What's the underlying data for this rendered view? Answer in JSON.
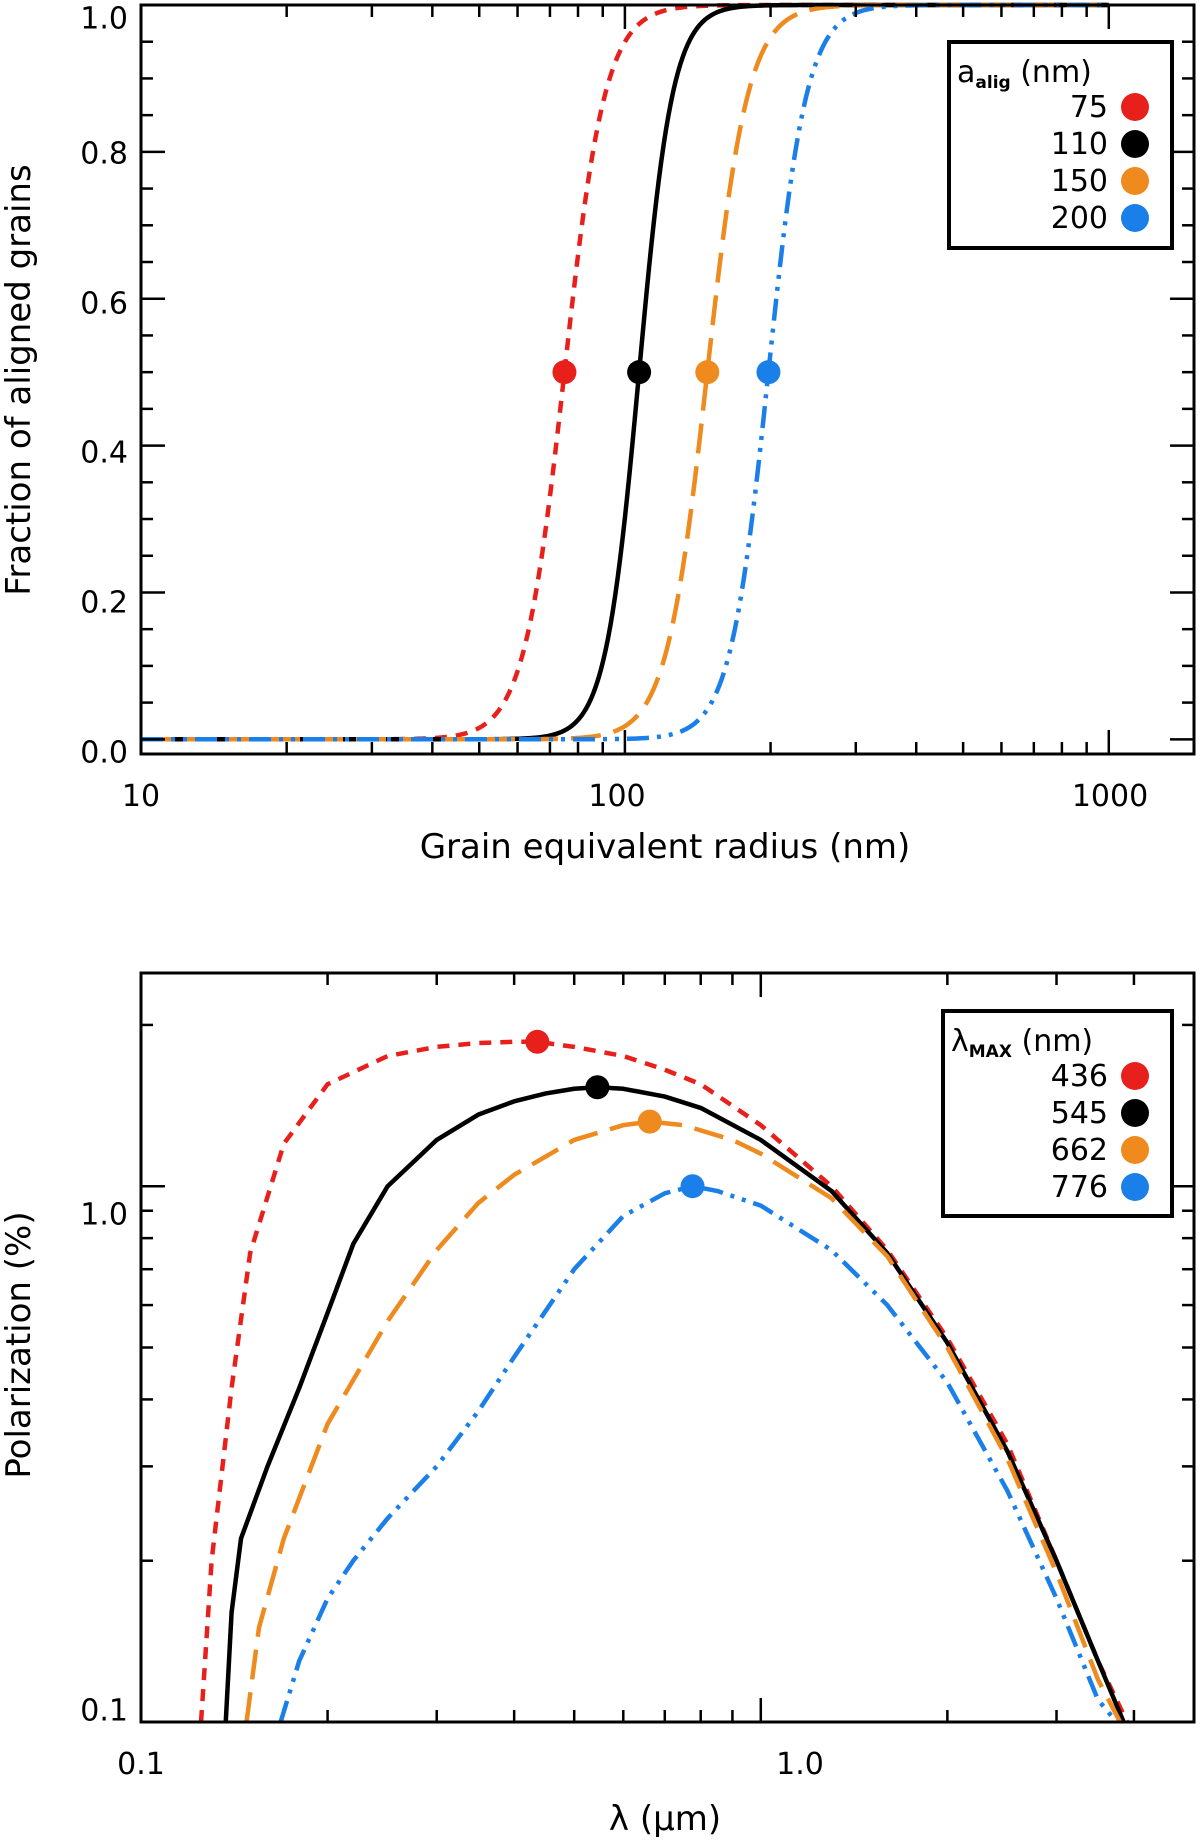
{
  "colors": {
    "red": "#e8201c",
    "black": "#000000",
    "orange": "#ee8a1e",
    "blue": "#1a7fe8"
  },
  "chart_data": [
    {
      "type": "line",
      "xscale": "log",
      "yscale": "linear",
      "xlabel": "Grain equivalent radius (nm)",
      "ylabel": "Fraction of aligned grains",
      "xlim": [
        10,
        1500
      ],
      "ylim": [
        -0.02,
        1.0
      ],
      "xticks": [
        10,
        100,
        1000
      ],
      "xtick_labels": [
        "10",
        "100",
        "1000"
      ],
      "yticks": [
        0.0,
        0.2,
        0.4,
        0.6,
        0.8,
        1.0
      ],
      "ytick_labels": [
        "0.0",
        "0.2",
        "0.4",
        "0.6",
        "0.8",
        "1.0"
      ],
      "legend": {
        "title_main": "a",
        "title_sub": "alig",
        "title_unit": " (nm)",
        "placement": "top-right",
        "entries": [
          "75",
          "110",
          "150",
          "200"
        ]
      },
      "series": [
        {
          "name": "75",
          "color_key": "red",
          "dash": "short",
          "center": 75,
          "width": 0.085,
          "marker": {
            "x": 75,
            "y": 0.5
          }
        },
        {
          "name": "110",
          "color_key": "black",
          "dash": "solid",
          "center": 107,
          "width": 0.07,
          "marker": {
            "x": 107,
            "y": 0.5
          }
        },
        {
          "name": "150",
          "color_key": "orange",
          "dash": "long",
          "center": 148,
          "width": 0.085,
          "marker": {
            "x": 148,
            "y": 0.5
          }
        },
        {
          "name": "200",
          "color_key": "blue",
          "dash": "dashdotdot",
          "center": 198,
          "width": 0.08,
          "marker": {
            "x": 198,
            "y": 0.5
          }
        }
      ]
    },
    {
      "type": "line",
      "xscale": "log",
      "yscale": "log",
      "xlabel": "λ (μm)",
      "ylabel": "Polarization (%)",
      "xlim": [
        0.1,
        5.0
      ],
      "ylim": [
        0.1,
        2.5
      ],
      "xticks": [
        0.1,
        1.0
      ],
      "xtick_labels": [
        "0.1",
        "1.0"
      ],
      "yticks": [
        0.1,
        1.0
      ],
      "ytick_labels": [
        "0.1",
        "1.0"
      ],
      "legend": {
        "title_main": "λ",
        "title_sub": "MAX",
        "title_unit": " (nm)",
        "placement": "top-right",
        "entries": [
          "436",
          "545",
          "662",
          "776"
        ]
      },
      "series": [
        {
          "name": "436",
          "color_key": "red",
          "dash": "short",
          "x": [
            0.125,
            0.13,
            0.14,
            0.15,
            0.17,
            0.2,
            0.25,
            0.3,
            0.35,
            0.4,
            0.436,
            0.5,
            0.6,
            0.7,
            0.8,
            1.0,
            1.3,
            1.6,
            2.0,
            2.5,
            3.0,
            3.5,
            3.9
          ],
          "y": [
            0.1,
            0.2,
            0.42,
            0.75,
            1.2,
            1.55,
            1.75,
            1.82,
            1.85,
            1.86,
            1.86,
            1.82,
            1.75,
            1.65,
            1.55,
            1.3,
            1.0,
            0.76,
            0.52,
            0.33,
            0.2,
            0.13,
            0.1
          ],
          "marker": {
            "x": 0.436,
            "y": 1.86
          }
        },
        {
          "name": "545",
          "color_key": "black",
          "dash": "solid",
          "x": [
            0.137,
            0.14,
            0.145,
            0.16,
            0.18,
            0.2,
            0.22,
            0.25,
            0.3,
            0.35,
            0.4,
            0.45,
            0.5,
            0.545,
            0.6,
            0.7,
            0.8,
            1.0,
            1.3,
            1.6,
            2.0,
            2.5,
            3.0,
            3.5,
            3.85
          ],
          "y": [
            0.1,
            0.16,
            0.22,
            0.3,
            0.42,
            0.58,
            0.78,
            1.0,
            1.22,
            1.36,
            1.44,
            1.49,
            1.52,
            1.53,
            1.52,
            1.47,
            1.4,
            1.22,
            0.98,
            0.75,
            0.51,
            0.32,
            0.2,
            0.13,
            0.1
          ],
          "marker": {
            "x": 0.545,
            "y": 1.53
          }
        },
        {
          "name": "662",
          "color_key": "orange",
          "dash": "long",
          "x": [
            0.148,
            0.155,
            0.17,
            0.2,
            0.25,
            0.3,
            0.35,
            0.4,
            0.5,
            0.6,
            0.662,
            0.75,
            0.9,
            1.0,
            1.3,
            1.6,
            2.0,
            2.5,
            3.0,
            3.5,
            3.8
          ],
          "y": [
            0.1,
            0.15,
            0.22,
            0.36,
            0.56,
            0.76,
            0.93,
            1.05,
            1.22,
            1.3,
            1.32,
            1.3,
            1.22,
            1.15,
            0.95,
            0.74,
            0.5,
            0.31,
            0.19,
            0.12,
            0.1
          ],
          "marker": {
            "x": 0.662,
            "y": 1.32
          }
        },
        {
          "name": "776",
          "color_key": "blue",
          "dash": "dashdotdot",
          "x": [
            0.168,
            0.18,
            0.2,
            0.22,
            0.25,
            0.3,
            0.35,
            0.4,
            0.5,
            0.6,
            0.7,
            0.776,
            0.85,
            1.0,
            1.3,
            1.6,
            2.0,
            2.5,
            3.0,
            3.5,
            3.75
          ],
          "y": [
            0.1,
            0.13,
            0.17,
            0.2,
            0.24,
            0.3,
            0.38,
            0.48,
            0.7,
            0.88,
            0.97,
            1.0,
            0.98,
            0.92,
            0.76,
            0.6,
            0.43,
            0.27,
            0.17,
            0.11,
            0.1
          ],
          "marker": {
            "x": 0.776,
            "y": 1.0
          }
        }
      ]
    }
  ]
}
